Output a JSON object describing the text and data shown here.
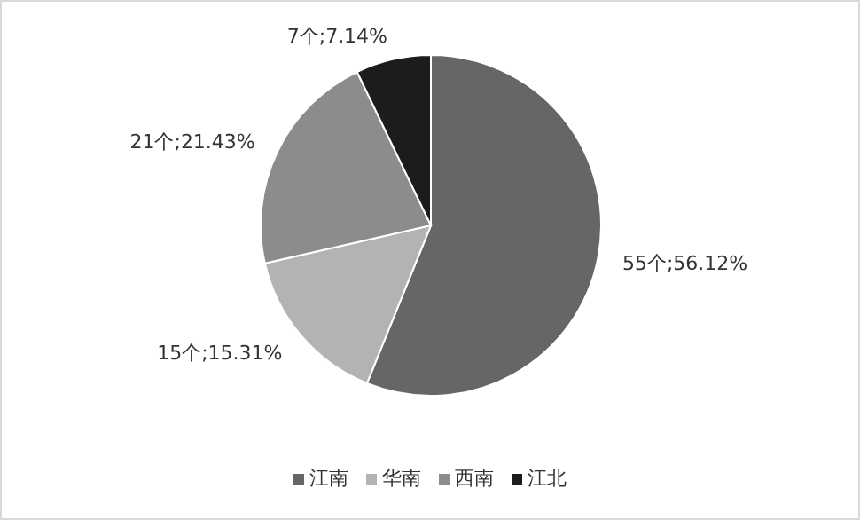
{
  "chart_data": {
    "type": "pie",
    "categories": [
      "江南",
      "华南",
      "西南",
      "江北"
    ],
    "values": [
      55,
      15,
      21,
      7
    ],
    "colors": [
      "#666666",
      "#b3b3b3",
      "#8c8c8c",
      "#1c1c1c"
    ],
    "value_labels": [
      "55个;56.12%",
      "15个;15.31%",
      "21个;21.43%",
      "7个;7.14%"
    ],
    "legend": "bottom"
  }
}
